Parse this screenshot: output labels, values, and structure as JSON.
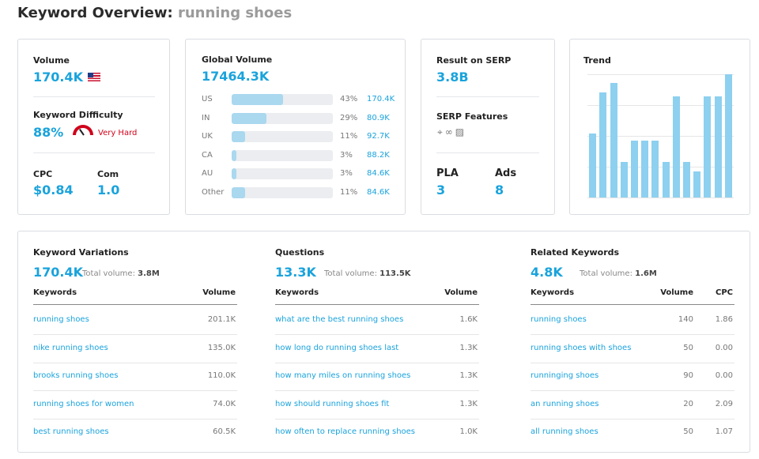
{
  "header": {
    "title": "Keyword Overview:",
    "keyword": "running shoes"
  },
  "volume_card": {
    "volume_label": "Volume",
    "volume_value": "170.4K",
    "flag_icon": "us-flag-icon",
    "kd_label": "Keyword Difficulty",
    "kd_value": "88%",
    "kd_text": "Very Hard",
    "kd_color": "#d0021b",
    "cpc_label": "CPC",
    "cpc_value": "$0.84",
    "com_label": "Com",
    "com_value": "1.0"
  },
  "global_volume": {
    "label": "Global Volume",
    "value": "17464.3K",
    "rows": [
      {
        "country": "US",
        "percent": "43%",
        "share": 0.43,
        "volume": "170.4K"
      },
      {
        "country": "IN",
        "percent": "29%",
        "share": 0.29,
        "volume": "80.9K"
      },
      {
        "country": "UK",
        "percent": "11%",
        "share": 0.11,
        "volume": "92.7K"
      },
      {
        "country": "CA",
        "percent": "3%",
        "share": 0.03,
        "volume": "88.2K"
      },
      {
        "country": "AU",
        "percent": "3%",
        "share": 0.03,
        "volume": "84.6K"
      },
      {
        "country": "Other",
        "percent": "11%",
        "share": 0.11,
        "volume": "84.6K"
      }
    ]
  },
  "serp_card": {
    "result_label": "Result on SERP",
    "result_value": "3.8B",
    "features_label": "SERP Features",
    "features_icons": [
      "location-pin-icon",
      "link-icon",
      "image-icon"
    ],
    "pla_label": "PLA",
    "pla_value": "3",
    "ads_label": "Ads",
    "ads_value": "8"
  },
  "trend": {
    "label": "Trend",
    "chart_data": {
      "type": "bar",
      "values": [
        0.52,
        0.85,
        0.93,
        0.29,
        0.46,
        0.46,
        0.46,
        0.29,
        0.82,
        0.29,
        0.21,
        0.82,
        0.82,
        1.0
      ],
      "ylim": [
        0,
        1
      ],
      "grid": true
    }
  },
  "keyword_variations": {
    "title": "Keyword Variations",
    "value": "170.4K",
    "total_label": "Total volume:",
    "total_value": "3.8M",
    "columns": [
      "Keywords",
      "Volume"
    ],
    "rows": [
      {
        "keyword": "running shoes",
        "volume": "201.1K"
      },
      {
        "keyword": "nike running shoes",
        "volume": "135.0K"
      },
      {
        "keyword": "brooks running shoes",
        "volume": "110.0K"
      },
      {
        "keyword": "running shoes for women",
        "volume": "74.0K"
      },
      {
        "keyword": "best running shoes",
        "volume": "60.5K"
      }
    ]
  },
  "questions": {
    "title": "Questions",
    "value": "13.3K",
    "total_label": "Total volume:",
    "total_value": "113.5K",
    "columns": [
      "Keywords",
      "Volume"
    ],
    "rows": [
      {
        "keyword": "what are the best running shoes",
        "volume": "1.6K"
      },
      {
        "keyword": "how long do running shoes last",
        "volume": "1.3K"
      },
      {
        "keyword": "how many miles on running shoes",
        "volume": "1.3K"
      },
      {
        "keyword": "how should running shoes fit",
        "volume": "1.3K"
      },
      {
        "keyword": "how often to replace running shoes",
        "volume": "1.0K"
      }
    ]
  },
  "related_keywords": {
    "title": "Related Keywords",
    "value": "4.8K",
    "total_label": "Total volume:",
    "total_value": "1.6M",
    "columns": [
      "Keywords",
      "Volume",
      "CPC"
    ],
    "rows": [
      {
        "keyword": "running shoes",
        "volume": "140",
        "cpc": "1.86"
      },
      {
        "keyword": "running shoes with shoes",
        "volume": "50",
        "cpc": "0.00"
      },
      {
        "keyword": "runninging shoes",
        "volume": "90",
        "cpc": "0.00"
      },
      {
        "keyword": "an running shoes",
        "volume": "20",
        "cpc": "2.09"
      },
      {
        "keyword": "all running shoes",
        "volume": "50",
        "cpc": "1.07"
      }
    ]
  }
}
